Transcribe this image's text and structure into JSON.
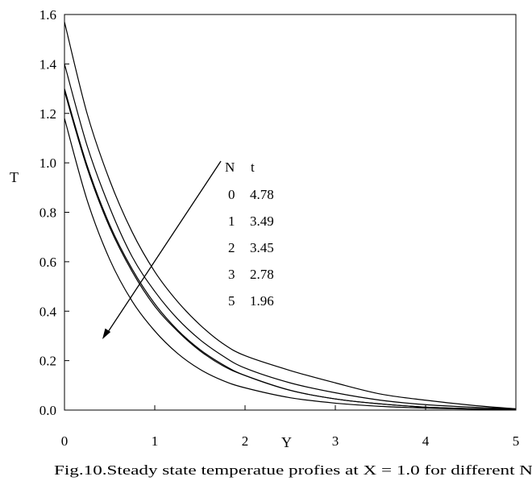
{
  "chart_data": {
    "type": "line",
    "xlabel": "Y",
    "ylabel": "T",
    "xlim": [
      0,
      5
    ],
    "ylim": [
      0,
      1.6
    ],
    "x_ticks": [
      "0",
      "1",
      "2",
      "3",
      "4",
      "5"
    ],
    "y_ticks": [
      "0.0",
      "0.2",
      "0.4",
      "0.6",
      "0.8",
      "1.0",
      "1.2",
      "1.4",
      "1.6"
    ],
    "grid": false,
    "x": [
      0,
      0.25,
      0.5,
      0.75,
      1,
      1.25,
      1.5,
      1.75,
      2,
      2.5,
      3,
      3.5,
      4,
      4.5,
      5
    ],
    "series": [
      {
        "values": [
          1.57,
          1.2,
          0.93,
          0.72,
          0.56,
          0.44,
          0.345,
          0.27,
          0.22,
          0.16,
          0.11,
          0.065,
          0.04,
          0.02,
          0.005
        ]
      },
      {
        "values": [
          1.4,
          1.07,
          0.82,
          0.62,
          0.48,
          0.37,
          0.285,
          0.22,
          0.17,
          0.11,
          0.07,
          0.04,
          0.022,
          0.012,
          0.005
        ]
      },
      {
        "values": [
          1.29,
          0.98,
          0.74,
          0.56,
          0.42,
          0.32,
          0.24,
          0.18,
          0.14,
          0.08,
          0.045,
          0.025,
          0.012,
          0.006,
          0.003
        ]
      },
      {
        "values": [
          1.3,
          0.99,
          0.75,
          0.57,
          0.43,
          0.325,
          0.245,
          0.185,
          0.14,
          0.08,
          0.045,
          0.025,
          0.012,
          0.006,
          0.003
        ]
      },
      {
        "values": [
          1.18,
          0.85,
          0.61,
          0.44,
          0.32,
          0.23,
          0.165,
          0.12,
          0.09,
          0.05,
          0.028,
          0.015,
          0.008,
          0.004,
          0.002
        ]
      }
    ],
    "legend": {
      "header": [
        "N",
        "t"
      ],
      "rows": [
        [
          "0",
          "4.78"
        ],
        [
          "1",
          "3.49"
        ],
        [
          "2",
          "3.45"
        ],
        [
          "3",
          "2.78"
        ],
        [
          "5",
          "1.96"
        ]
      ]
    },
    "caption": "Fig.10.Steady state temperatue profies at X = 1.0 for different N"
  }
}
